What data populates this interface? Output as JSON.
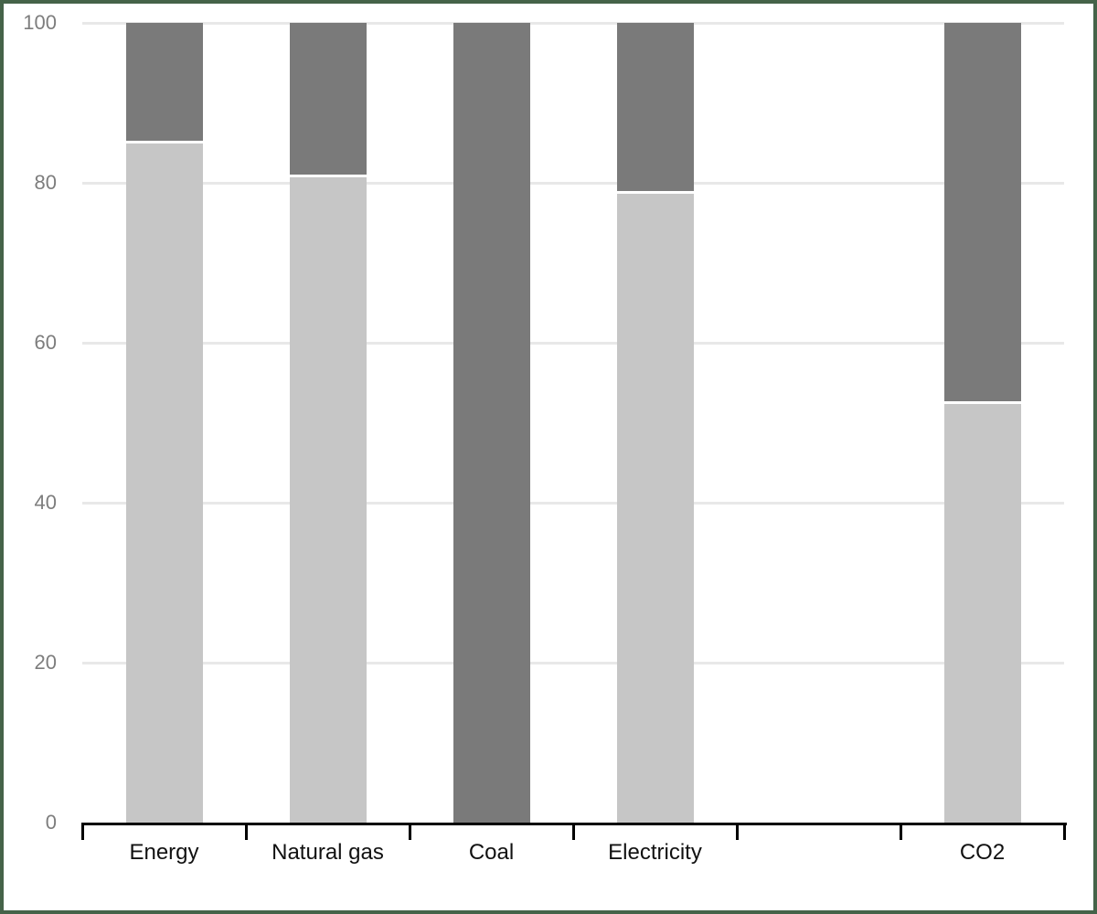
{
  "chart_data": {
    "type": "bar",
    "stacked": true,
    "orientation": "vertical",
    "title": "",
    "xlabel": "",
    "ylabel": "",
    "categories": [
      "Energy",
      "Natural gas",
      "Coal",
      "Electricity",
      "",
      "CO2"
    ],
    "series": [
      {
        "name": "bottom-segment-light-gray",
        "color": "#c6c6c6",
        "values": [
          84.9,
          80.7,
          0,
          78.6,
          0,
          52.3
        ]
      },
      {
        "name": "top-segment-dark-gray",
        "color": "#7a7a7a",
        "values": [
          15.1,
          19.3,
          100,
          21.4,
          0,
          47.7
        ]
      }
    ],
    "ylim": [
      0,
      100
    ],
    "yticks": [
      0,
      20,
      40,
      60,
      80,
      100
    ],
    "grid": "horizontal-major-only",
    "legend": "none"
  },
  "style": {
    "background_color": "#ffffff",
    "frame_border_color": "#456349",
    "gridline_color": "#e8e8e8",
    "axis_color": "#000000",
    "ytick_label_color": "#7d7d7d",
    "xtick_label_color": "#111111",
    "segment_gap_color": "#ffffff"
  }
}
